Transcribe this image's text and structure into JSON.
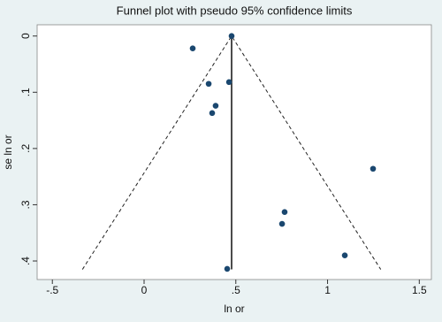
{
  "chart_data": {
    "type": "scatter",
    "title": "Funnel plot with pseudo 95% confidence limits",
    "x_label": "ln or",
    "y_label": "se ln or",
    "x": [
      0.477,
      0.265,
      0.352,
      0.463,
      0.39,
      0.371,
      1.248,
      0.766,
      0.752,
      1.094,
      0.453
    ],
    "values": [
      0,
      0.022,
      0.085,
      0.082,
      0.124,
      0.137,
      0.236,
      0.313,
      0.334,
      0.39,
      0.414
    ],
    "color": "#1a476f",
    "pooled_estimate": 0.477,
    "confidence_limits": {
      "x": [
        -0.336,
        0.477,
        1.29
      ],
      "y": [
        0.415,
        0,
        0.415
      ]
    },
    "xlim": [
      -0.583,
      1.566
    ],
    "ylim": [
      -0.02,
      0.433
    ],
    "y_inverted": true,
    "xticks": [
      {
        "value": -0.5,
        "label": "-.5"
      },
      0,
      {
        "value": 0.5,
        "label": ".5"
      },
      1,
      {
        "value": 1.5,
        "label": "1.5"
      }
    ],
    "yticks": [
      0,
      {
        "value": 0.1,
        "label": ".1"
      },
      {
        "value": 0.2,
        "label": ".2"
      },
      {
        "value": 0.3,
        "label": ".3"
      },
      {
        "value": 0.4,
        "label": ".4"
      }
    ]
  }
}
